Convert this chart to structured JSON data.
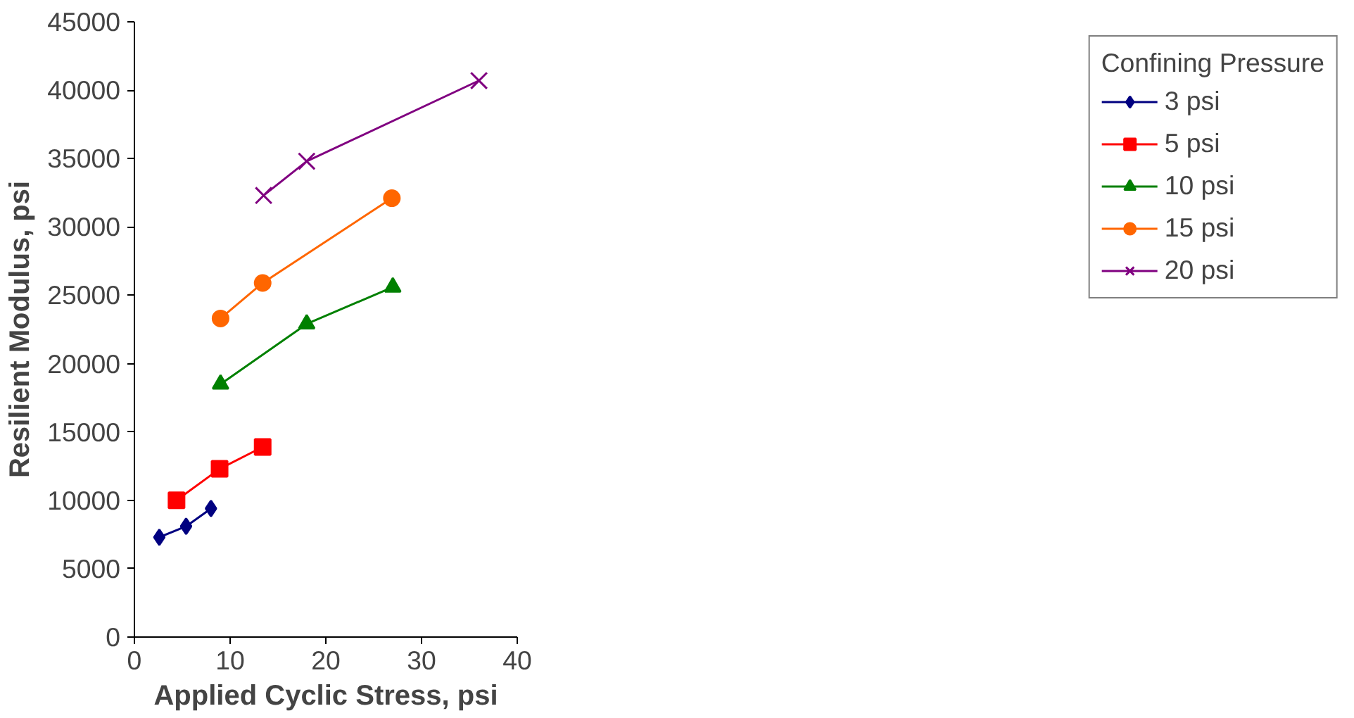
{
  "chart_data": {
    "type": "line",
    "xlabel": "Applied Cyclic Stress, psi",
    "ylabel": "Resilient Modulus, psi",
    "legend_title": "Confining Pressure",
    "legend": "right",
    "grid": false,
    "xlim": [
      0,
      40
    ],
    "xticks": [
      0,
      10,
      20,
      30,
      40
    ],
    "ylim": [
      0,
      45000
    ],
    "yticks": [
      0,
      5000,
      10000,
      15000,
      20000,
      25000,
      30000,
      35000,
      40000,
      45000
    ],
    "series": [
      {
        "name": "3 psi",
        "color": "#000080",
        "marker": "diamond",
        "x": [
          2.6,
          5.4,
          8.0
        ],
        "values": [
          7300,
          8100,
          9400
        ]
      },
      {
        "name": "5 psi",
        "color": "#ff0000",
        "marker": "square",
        "x": [
          4.4,
          8.9,
          13.4
        ],
        "values": [
          10000,
          12300,
          13900
        ]
      },
      {
        "name": "10 psi",
        "color": "#008000",
        "marker": "triangle",
        "x": [
          9.0,
          18.0,
          27.0
        ],
        "values": [
          18500,
          22900,
          25600
        ]
      },
      {
        "name": "15 psi",
        "color": "#ff6600",
        "marker": "circle",
        "x": [
          9.0,
          13.4,
          26.9
        ],
        "values": [
          23300,
          25900,
          32100
        ]
      },
      {
        "name": "20 psi",
        "color": "#800080",
        "marker": "cross",
        "x": [
          13.5,
          18.0,
          36.0
        ],
        "values": [
          32300,
          34800,
          40700
        ]
      }
    ]
  }
}
